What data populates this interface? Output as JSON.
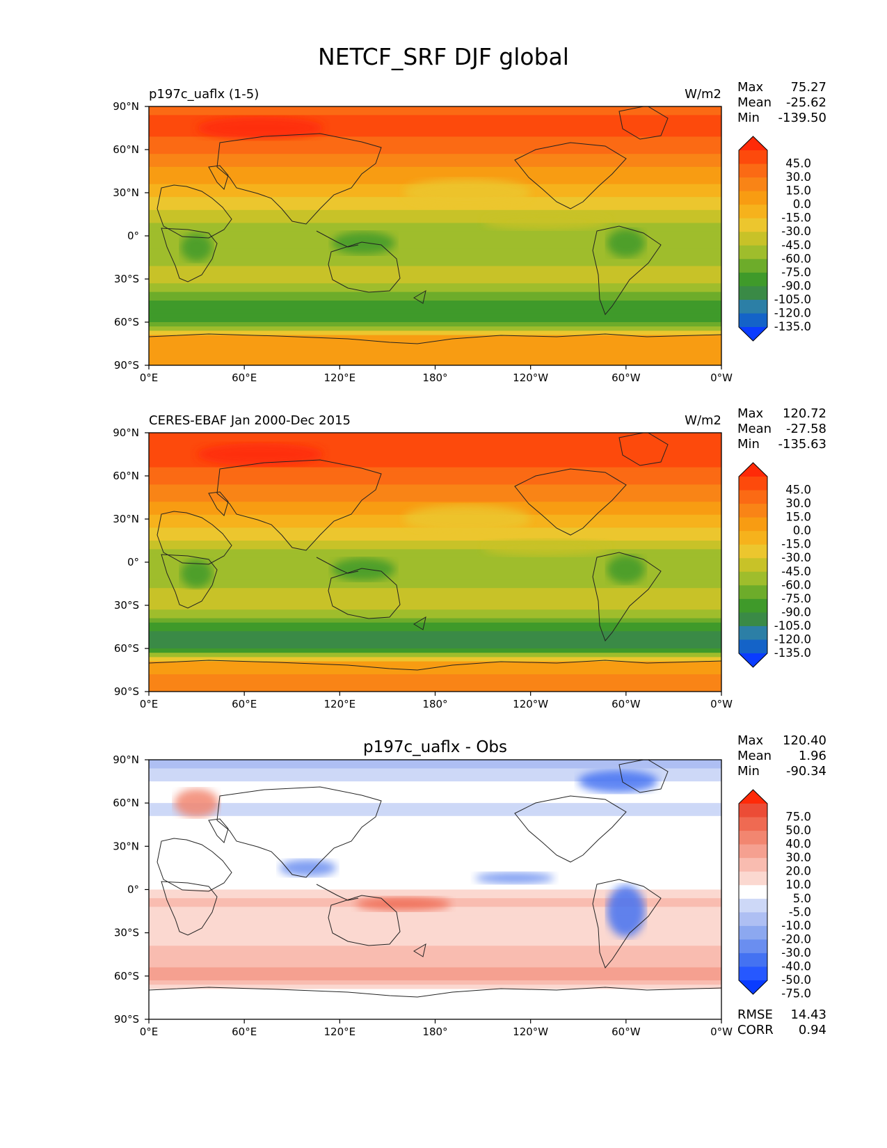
{
  "title": "NETCF_SRF DJF global",
  "x_tick_labels": [
    "0°E",
    "60°E",
    "120°E",
    "180°",
    "120°W",
    "60°W",
    "0°W"
  ],
  "y_tick_labels": [
    "90°N",
    "60°N",
    "30°N",
    "0°",
    "30°S",
    "60°S",
    "90°S"
  ],
  "colors": {
    "levels": [
      "#0a3cff",
      "#1463c8",
      "#2c7fa6",
      "#3a8a46",
      "#3f9a2a",
      "#6dac2a",
      "#9fbd2c",
      "#c8c228",
      "#ecc62e",
      "#f6b21c",
      "#f89c12",
      "#f98416",
      "#fb6a14",
      "#fd4a0c",
      "#ff2a08"
    ],
    "diff_levels": [
      "#0a3cff",
      "#2658ff",
      "#4472f2",
      "#6a8ef0",
      "#8ca8f0",
      "#aebff3",
      "#cdd8f7",
      "#ffffff",
      "#fbd8d0",
      "#f9bcb0",
      "#f5a090",
      "#f28670",
      "#ef6a52",
      "#ec4c36",
      "#ff2a08"
    ]
  },
  "chart_data": [
    {
      "type": "heatmap",
      "name": "p197c_uaflx (1-5)",
      "left_title": "p197c_uaflx (1-5)",
      "units": "W/m2",
      "stats": {
        "max_label": "Max",
        "max": "75.27",
        "mean_label": "Mean",
        "mean": "-25.62",
        "min_label": "Min",
        "min": "-139.50"
      },
      "colorbar_labels": [
        "45.0",
        "30.0",
        "15.0",
        "0.0",
        "-15.0",
        "-30.0",
        "-45.0",
        "-60.0",
        "-75.0",
        "-90.0",
        "-105.0",
        "-120.0",
        "-135.0"
      ],
      "zonal_profile": {
        "lat": [
          90,
          80,
          70,
          60,
          50,
          40,
          30,
          20,
          10,
          0,
          -10,
          -20,
          -30,
          -40,
          -50,
          -60,
          -70,
          -80,
          -90
        ],
        "value": [
          40,
          48,
          45,
          35,
          20,
          5,
          -10,
          -28,
          -45,
          -55,
          -60,
          -45,
          -40,
          -60,
          -85,
          -88,
          0,
          15,
          15
        ]
      },
      "xlim": [
        0,
        360
      ],
      "ylim": [
        -90,
        90
      ]
    },
    {
      "type": "heatmap",
      "name": "CERES-EBAF Jan 2000-Dec 2015",
      "left_title": "CERES-EBAF Jan 2000-Dec 2015",
      "units": "W/m2",
      "stats": {
        "max_label": "Max",
        "max": "120.72",
        "mean_label": "Mean",
        "mean": "-27.58",
        "min_label": "Min",
        "min": "-135.63"
      },
      "colorbar_labels": [
        "45.0",
        "30.0",
        "15.0",
        "0.0",
        "-15.0",
        "-30.0",
        "-45.0",
        "-60.0",
        "-75.0",
        "-90.0",
        "-105.0",
        "-120.0",
        "-135.0"
      ],
      "zonal_profile": {
        "lat": [
          90,
          80,
          70,
          60,
          50,
          40,
          30,
          20,
          10,
          0,
          -10,
          -20,
          -30,
          -40,
          -50,
          -60,
          -70,
          -80,
          -90
        ],
        "value": [
          55,
          55,
          50,
          40,
          25,
          10,
          -5,
          -20,
          -40,
          -60,
          -55,
          -40,
          -35,
          -65,
          -95,
          -105,
          5,
          20,
          20
        ]
      },
      "xlim": [
        0,
        360
      ],
      "ylim": [
        -90,
        90
      ]
    },
    {
      "type": "heatmap",
      "name": "p197c_uaflx - Obs",
      "center_title": "p197c_uaflx - Obs",
      "stats": {
        "max_label": "Max",
        "max": "120.40",
        "mean_label": "Mean",
        "mean": "1.96",
        "min_label": "Min",
        "min": "-90.34"
      },
      "extra_stats": {
        "rmse_label": "RMSE",
        "rmse": "14.43",
        "corr_label": "CORR",
        "corr": "0.94"
      },
      "colorbar_labels": [
        "75.0",
        "50.0",
        "40.0",
        "30.0",
        "20.0",
        "10.0",
        "5.0",
        "-5.0",
        "-10.0",
        "-20.0",
        "-30.0",
        "-40.0",
        "-50.0",
        "-75.0"
      ],
      "zonal_profile": {
        "lat": [
          90,
          80,
          70,
          60,
          50,
          40,
          30,
          20,
          10,
          0,
          -10,
          -20,
          -30,
          -40,
          -50,
          -60,
          -70,
          -80,
          -90
        ],
        "value": [
          -15,
          -8,
          0,
          -5,
          -5,
          0,
          -5,
          2,
          3,
          5,
          12,
          5,
          8,
          10,
          15,
          30,
          -3,
          0,
          0
        ]
      },
      "xlim": [
        0,
        360
      ],
      "ylim": [
        -90,
        90
      ]
    }
  ]
}
